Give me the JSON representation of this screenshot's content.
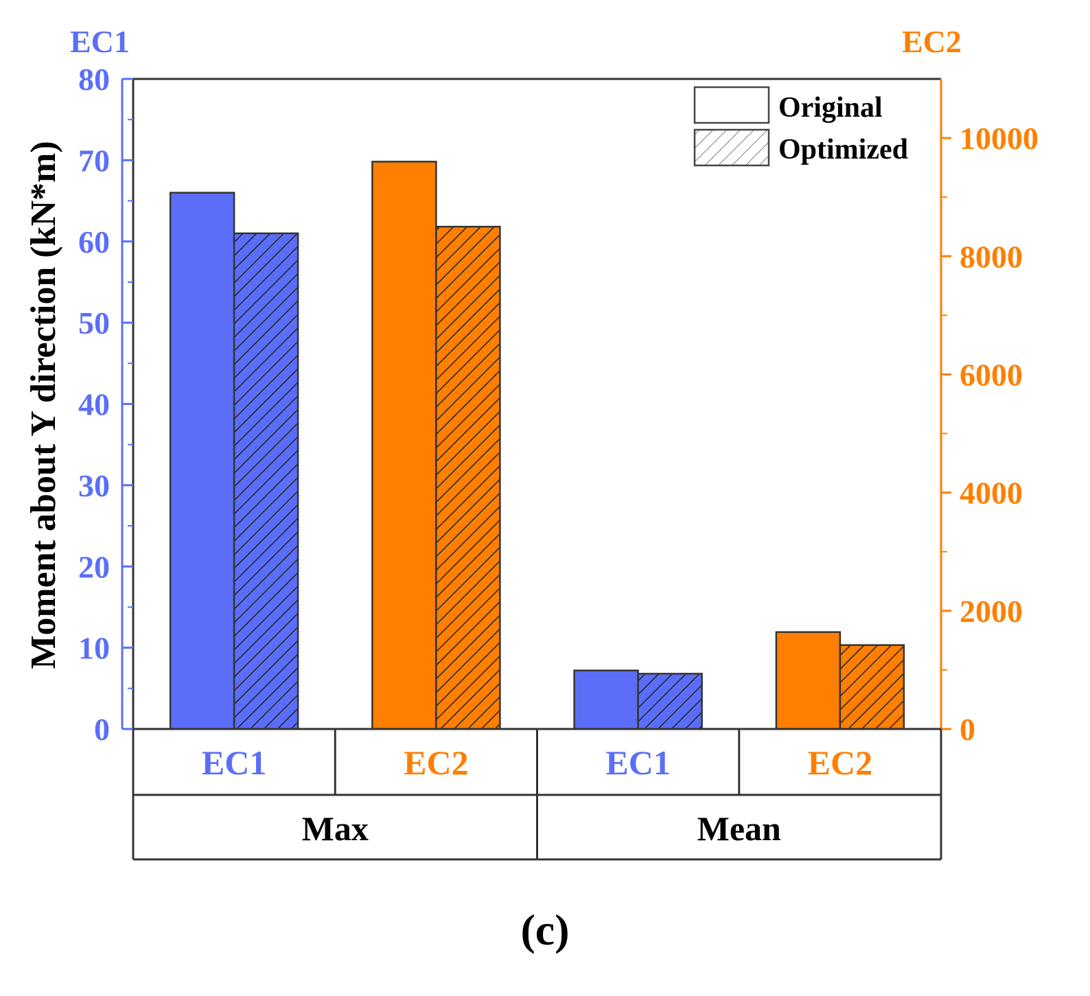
{
  "chart_data": {
    "type": "bar",
    "ylabel": "Moment about Y direction (kN*m)",
    "left_axis": {
      "label": "EC1",
      "range": [
        0,
        80
      ],
      "ticks": [
        "0",
        "10",
        "20",
        "30",
        "40",
        "50",
        "60",
        "70",
        "80"
      ],
      "color": "#5b6ef8"
    },
    "right_axis": {
      "label": "EC2",
      "range": [
        0,
        11000
      ],
      "ticks": [
        "0",
        "2000",
        "4000",
        "6000",
        "8000",
        "10000"
      ],
      "color": "#ff7f00"
    },
    "legend": {
      "placement": "top-right",
      "entries": [
        "Original",
        "Optimized"
      ]
    },
    "groups": [
      {
        "name": "Max",
        "subgroups": [
          {
            "name": "EC1",
            "axis": "left",
            "color": "#5b6ef8",
            "original": 66,
            "optimized": 61
          },
          {
            "name": "EC2",
            "axis": "right",
            "color": "#ff7f00",
            "original": 9600,
            "optimized": 8500
          }
        ]
      },
      {
        "name": "Mean",
        "subgroups": [
          {
            "name": "EC1",
            "axis": "left",
            "color": "#5b6ef8",
            "original": 7.2,
            "optimized": 6.8
          },
          {
            "name": "EC2",
            "axis": "right",
            "color": "#ff7f00",
            "original": 1640,
            "optimized": 1420
          }
        ]
      }
    ]
  },
  "caption": "(c)"
}
